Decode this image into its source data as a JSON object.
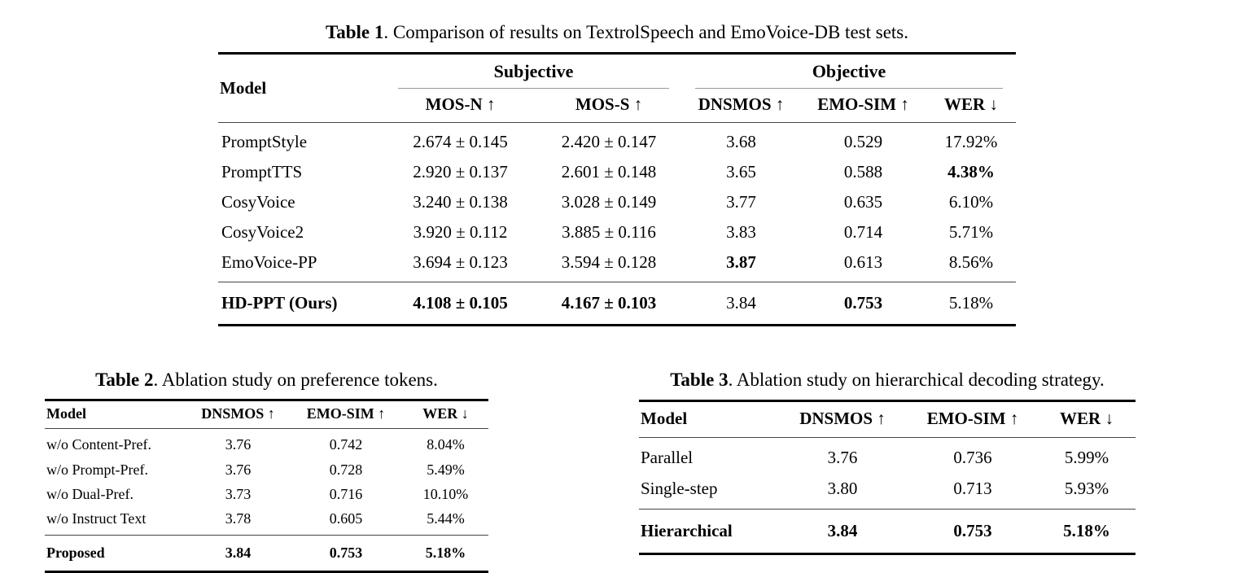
{
  "table1": {
    "caption_label": "Table 1",
    "caption_text": ". Comparison of results on TextrolSpeech and EmoVoice-DB test sets.",
    "col_model": "Model",
    "group_subjective": "Subjective",
    "group_objective": "Objective",
    "headers": [
      "MOS-N ↑",
      "MOS-S ↑",
      "DNSMOS ↑",
      "EMO-SIM ↑",
      "WER ↓"
    ],
    "rows": [
      {
        "model": "PromptStyle",
        "mos_n": "2.674 ± 0.145",
        "mos_s": "2.420 ± 0.147",
        "dnsmos": "3.68",
        "emo_sim": "0.529",
        "wer": "17.92%"
      },
      {
        "model": "PromptTTS",
        "mos_n": "2.920 ± 0.137",
        "mos_s": "2.601 ± 0.148",
        "dnsmos": "3.65",
        "emo_sim": "0.588",
        "wer": "4.38%"
      },
      {
        "model": "CosyVoice",
        "mos_n": "3.240 ± 0.138",
        "mos_s": "3.028 ± 0.149",
        "dnsmos": "3.77",
        "emo_sim": "0.635",
        "wer": "6.10%"
      },
      {
        "model": "CosyVoice2",
        "mos_n": "3.920 ± 0.112",
        "mos_s": "3.885 ± 0.116",
        "dnsmos": "3.83",
        "emo_sim": "0.714",
        "wer": "5.71%"
      },
      {
        "model": "EmoVoice-PP",
        "mos_n": "3.694 ± 0.123",
        "mos_s": "3.594 ± 0.128",
        "dnsmos": "3.87",
        "emo_sim": "0.613",
        "wer": "8.56%"
      },
      {
        "model": "HD-PPT (Ours)",
        "mos_n": "4.108 ± 0.105",
        "mos_s": "4.167 ± 0.103",
        "dnsmos": "3.84",
        "emo_sim": "0.753",
        "wer": "5.18%"
      }
    ]
  },
  "table2": {
    "caption_label": "Table 2",
    "caption_text": ". Ablation study on preference tokens.",
    "headers": [
      "Model",
      "DNSMOS ↑",
      "EMO-SIM ↑",
      "WER ↓"
    ],
    "rows": [
      {
        "model": "w/o Content-Pref.",
        "dnsmos": "3.76",
        "emo_sim": "0.742",
        "wer": "8.04%"
      },
      {
        "model": "w/o Prompt-Pref.",
        "dnsmos": "3.76",
        "emo_sim": "0.728",
        "wer": "5.49%"
      },
      {
        "model": "w/o Dual-Pref.",
        "dnsmos": "3.73",
        "emo_sim": "0.716",
        "wer": "10.10%"
      },
      {
        "model": "w/o Instruct Text",
        "dnsmos": "3.78",
        "emo_sim": "0.605",
        "wer": "5.44%"
      },
      {
        "model": "Proposed",
        "dnsmos": "3.84",
        "emo_sim": "0.753",
        "wer": "5.18%"
      }
    ]
  },
  "table3": {
    "caption_label": "Table 3",
    "caption_text": ". Ablation study on hierarchical decoding strategy.",
    "headers": [
      "Model",
      "DNSMOS ↑",
      "EMO-SIM ↑",
      "WER ↓"
    ],
    "rows": [
      {
        "model": "Parallel",
        "dnsmos": "3.76",
        "emo_sim": "0.736",
        "wer": "5.99%"
      },
      {
        "model": "Single-step",
        "dnsmos": "3.80",
        "emo_sim": "0.713",
        "wer": "5.93%"
      },
      {
        "model": "Hierarchical",
        "dnsmos": "3.84",
        "emo_sim": "0.753",
        "wer": "5.18%"
      }
    ]
  }
}
